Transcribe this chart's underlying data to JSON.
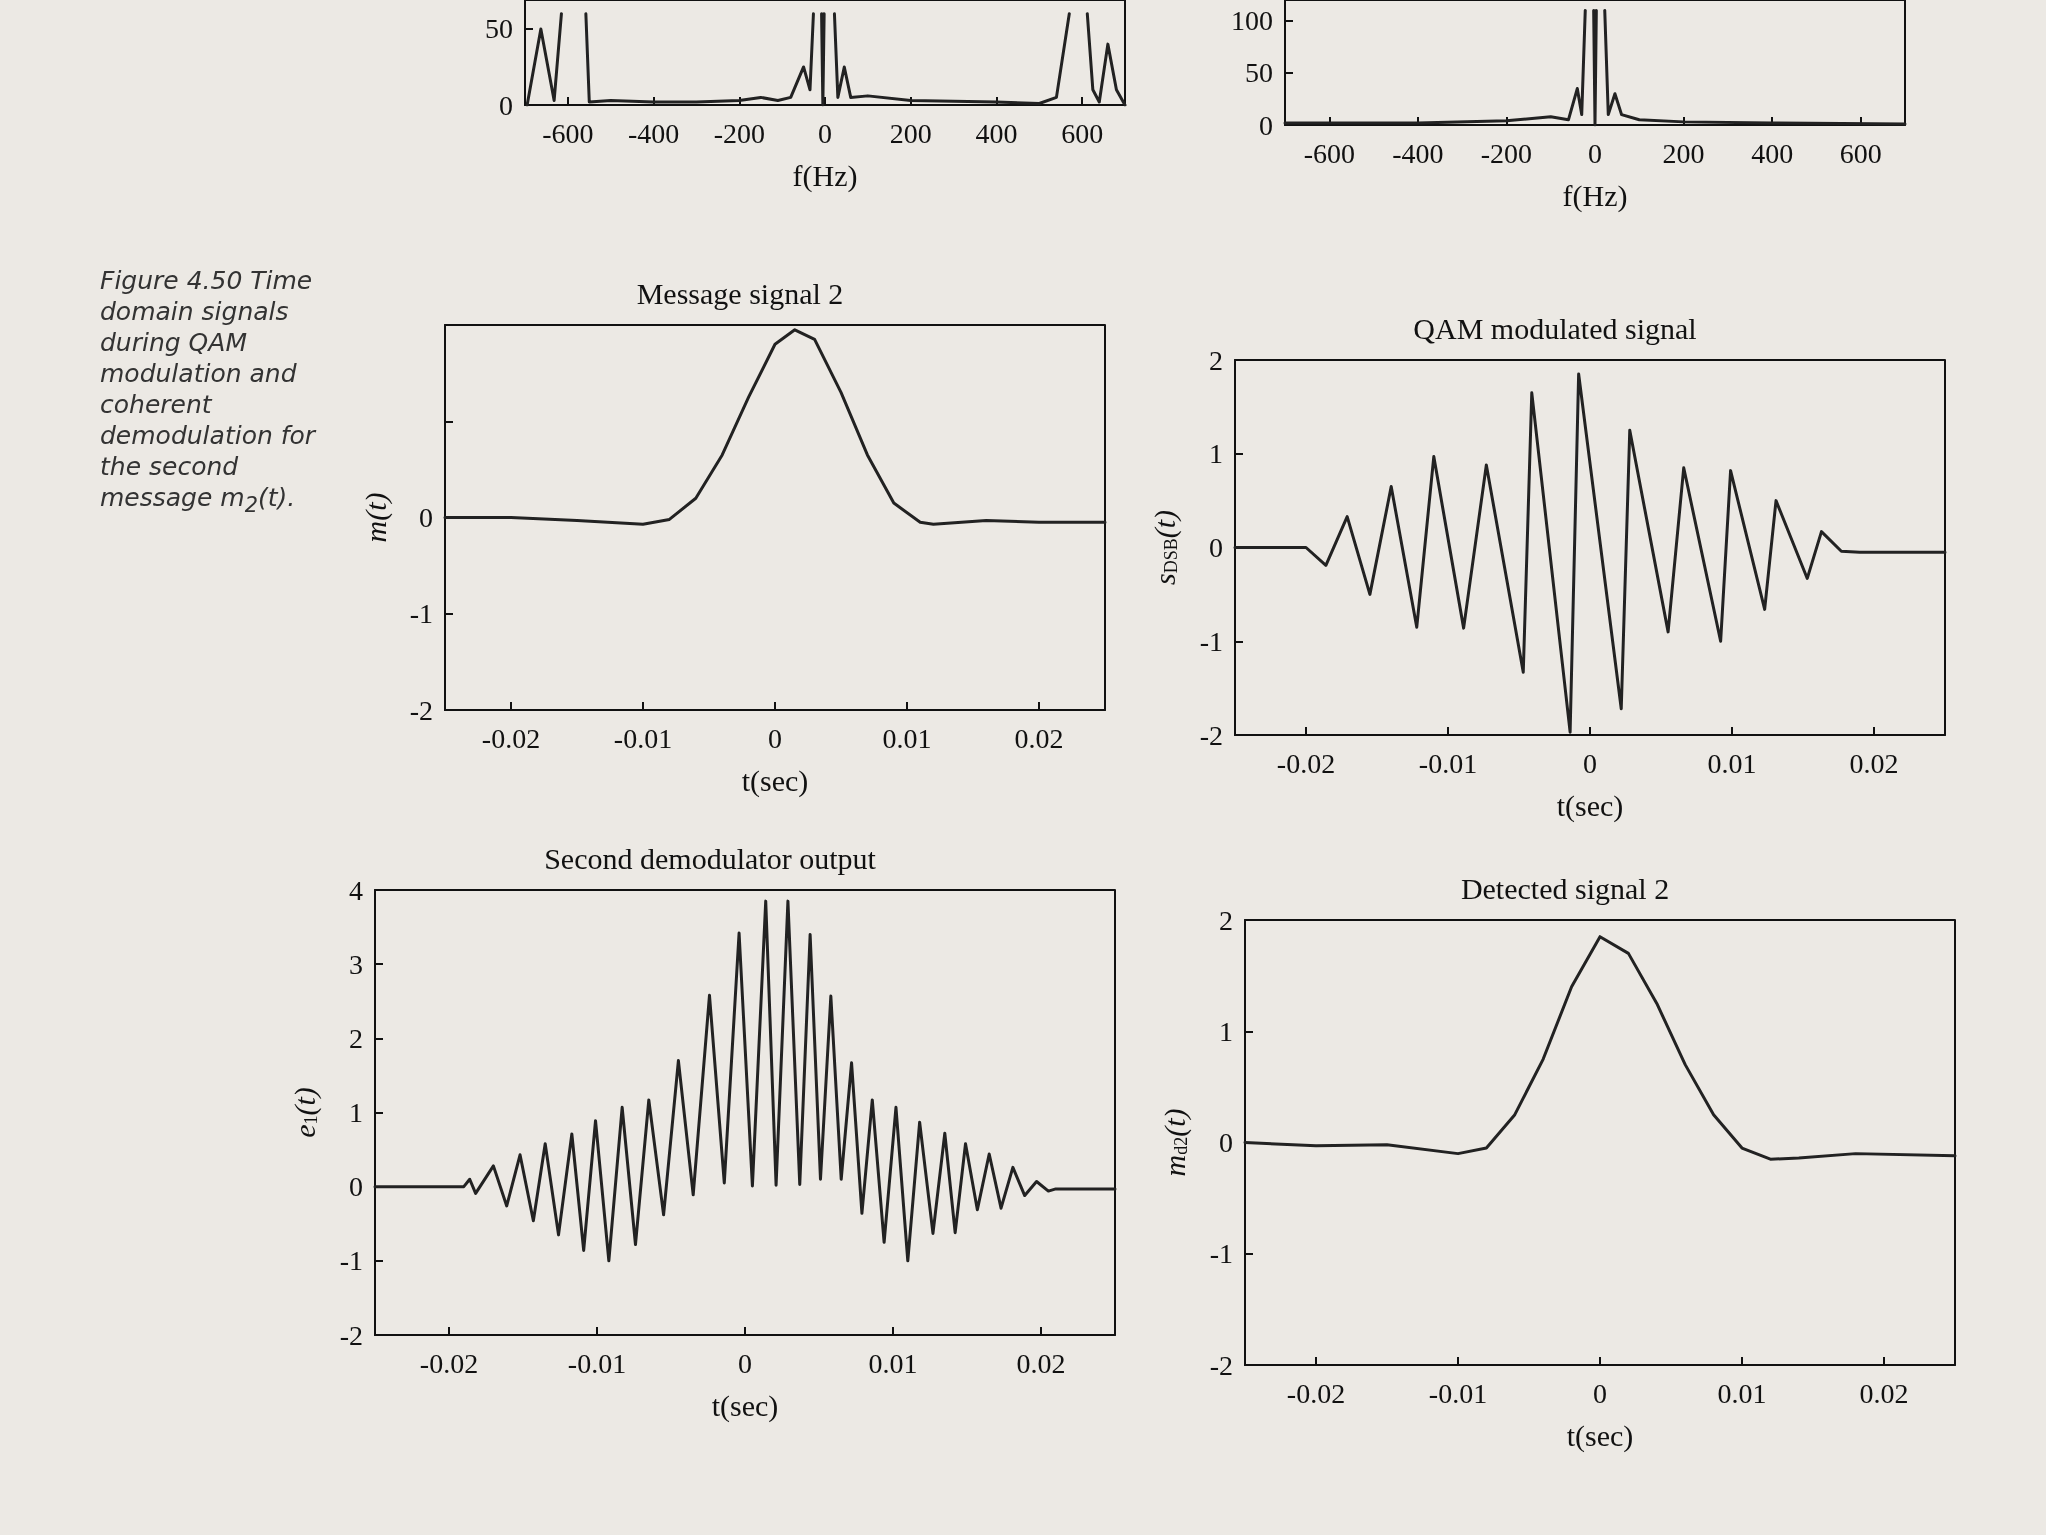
{
  "chart_data": [
    {
      "type": "line",
      "xlabel": "f(Hz)",
      "x": [
        -695,
        -663,
        -632,
        -615,
        -590,
        -558,
        -550,
        -500,
        -400,
        -300,
        -200,
        -150,
        -110,
        -80,
        -50,
        -35,
        -27,
        -15,
        -8,
        -5,
        -2,
        10,
        22,
        30,
        45,
        60,
        100,
        200,
        400,
        500,
        540,
        570,
        590,
        612,
        625,
        640,
        660,
        680,
        700
      ],
      "values": [
        0,
        50,
        3,
        60,
        null,
        60,
        2,
        3,
        2,
        2,
        3,
        5,
        3,
        5,
        25,
        10,
        60,
        null,
        60,
        0,
        60,
        null,
        60,
        5,
        25,
        5,
        6,
        3,
        2,
        1,
        5,
        60,
        null,
        60,
        10,
        2,
        40,
        10,
        0
      ],
      "color": "#222222",
      "xlim": [
        -700,
        700
      ],
      "ylim": [
        0,
        69
      ],
      "xticks": [
        -600,
        -400,
        -200,
        0,
        200,
        400,
        600
      ],
      "yticks": [
        0,
        50
      ],
      "marker": "none",
      "line_style": "solid",
      "grid": false
    },
    {
      "type": "line",
      "xlabel": "f(Hz)",
      "x": [
        -700,
        -400,
        -200,
        -100,
        -60,
        -40,
        -30,
        -22,
        -12,
        -3,
        0,
        3,
        12,
        22,
        30,
        45,
        60,
        100,
        200,
        400,
        700
      ],
      "values": [
        2,
        2,
        4,
        8,
        5,
        35,
        10,
        110,
        null,
        110,
        0,
        110,
        null,
        110,
        10,
        30,
        10,
        5,
        3,
        2,
        1
      ],
      "color": "#222222",
      "xlim": [
        -700,
        700
      ],
      "ylim": [
        0,
        120
      ],
      "xticks": [
        -600,
        -400,
        -200,
        0,
        200,
        400,
        600
      ],
      "yticks": [
        0,
        50,
        100
      ],
      "marker": "none",
      "line_style": "solid",
      "grid": false
    },
    {
      "type": "line",
      "title": "Message signal 2",
      "xlabel": "t(sec)",
      "ylabel": "m(t)",
      "annotations": [
        "Figure 4.50 Time domain signals during QAM modulation and coherent demodulation for the second message m$_{2}$(t)."
      ],
      "x": [
        -0.025,
        -0.02,
        -0.015,
        -0.01,
        -0.008,
        -0.006,
        -0.004,
        -0.002,
        0,
        0.0015,
        0.003,
        0.005,
        0.007,
        0.009,
        0.011,
        0.012,
        0.016,
        0.02,
        0.025
      ],
      "values": [
        0,
        0,
        -0.03,
        -0.07,
        -0.02,
        0.2,
        0.65,
        1.25,
        1.8,
        1.95,
        1.85,
        1.3,
        0.65,
        0.15,
        -0.05,
        -0.07,
        -0.03,
        -0.05,
        -0.05
      ],
      "color": "#222222",
      "xlim": [
        -0.025,
        0.025
      ],
      "ylim": [
        -2,
        2
      ],
      "xticks": [
        -0.02,
        -0.01,
        0,
        0.01,
        0.02
      ],
      "yticks": [
        -2,
        -1,
        0,
        {
          "value": 1,
          "label": null
        },
        {
          "value": 2,
          "label": null
        }
      ],
      "marker": "none",
      "line_style": "solid",
      "grid": false
    },
    {
      "type": "line",
      "title": "QAM modulated signal",
      "xlabel": "t(sec)",
      "ylabel": "s$_{DSB}$(t)",
      "x": [
        -0.025,
        -0.02,
        -0.0186,
        -0.0171,
        -0.0155,
        -0.014,
        -0.0122,
        -0.011,
        -0.0089,
        -0.0073,
        -0.0047,
        -0.0041,
        -0.0014,
        -0.0008,
        0.0022,
        0.0028,
        0.0055,
        0.0066,
        0.0092,
        0.0099,
        0.0123,
        0.0131,
        0.0153,
        0.0163,
        0.0177,
        0.019,
        0.025
      ],
      "values": [
        0,
        0,
        -0.19,
        0.33,
        -0.5,
        0.65,
        -0.85,
        0.97,
        -0.86,
        0.88,
        -1.33,
        1.65,
        -1.97,
        1.85,
        -1.72,
        1.25,
        -0.9,
        0.85,
        -1.0,
        0.82,
        -0.66,
        0.5,
        -0.33,
        0.17,
        -0.04,
        -0.05,
        -0.05
      ],
      "color": "#222222",
      "xlim": [
        -0.025,
        0.025
      ],
      "ylim": [
        -2,
        2
      ],
      "xticks": [
        -0.02,
        -0.01,
        0,
        0.01,
        0.02
      ],
      "yticks": [
        -2,
        -1,
        0,
        1,
        2
      ],
      "marker": "none",
      "line_style": "solid",
      "grid": false
    },
    {
      "type": "line",
      "title": "Second demodulator output",
      "xlabel": "t(sec)",
      "ylabel": "e$_{1}$(t)",
      "x": [
        -0.025,
        -0.019,
        -0.0186,
        -0.0182,
        -0.017,
        -0.0161,
        -0.0152,
        -0.0143,
        -0.0135,
        -0.0126,
        -0.0117,
        -0.0109,
        -0.0101,
        -0.0092,
        -0.0083,
        -0.0074,
        -0.0065,
        -0.0055,
        -0.0045,
        -0.0035,
        -0.0024,
        -0.0014,
        -0.0004,
        0.0005,
        0.0014,
        0.0021,
        0.0029,
        0.0037,
        0.0044,
        0.0051,
        0.0058,
        0.0065,
        0.0072,
        0.0079,
        0.0086,
        0.0094,
        0.0102,
        0.011,
        0.0118,
        0.0127,
        0.0135,
        0.0142,
        0.0149,
        0.0157,
        0.0165,
        0.0173,
        0.0181,
        0.0189,
        0.0197,
        0.0205,
        0.021,
        0.025
      ],
      "values": [
        0,
        0,
        0.1,
        -0.09,
        0.28,
        -0.26,
        0.43,
        -0.46,
        0.58,
        -0.65,
        0.71,
        -0.86,
        0.89,
        -1.0,
        1.07,
        -0.78,
        1.17,
        -0.38,
        1.7,
        -0.11,
        2.58,
        0.05,
        3.42,
        0.01,
        3.85,
        0.02,
        3.85,
        0.03,
        3.4,
        0.1,
        2.57,
        0.1,
        1.67,
        -0.36,
        1.17,
        -0.75,
        1.07,
        -1.0,
        0.87,
        -0.63,
        0.72,
        -0.62,
        0.58,
        -0.31,
        0.44,
        -0.29,
        0.26,
        -0.12,
        0.07,
        -0.06,
        -0.03,
        -0.03
      ],
      "color": "#222222",
      "xlim": [
        -0.025,
        0.025
      ],
      "ylim": [
        -2,
        4
      ],
      "xticks": [
        -0.02,
        -0.01,
        0,
        0.01,
        0.02
      ],
      "yticks": [
        -2,
        -1,
        0,
        1,
        2,
        3,
        4
      ],
      "marker": "none",
      "line_style": "solid",
      "grid": false
    },
    {
      "type": "line",
      "title": "Detected signal 2",
      "xlabel": "t(sec)",
      "ylabel": "m$_{d2}$(t)",
      "x": [
        -0.025,
        -0.02,
        -0.015,
        -0.01,
        -0.008,
        -0.006,
        -0.004,
        -0.002,
        0,
        0.002,
        0.004,
        0.006,
        0.008,
        0.01,
        0.012,
        0.014,
        0.018,
        0.025
      ],
      "values": [
        0,
        -0.03,
        -0.02,
        -0.1,
        -0.05,
        0.25,
        0.75,
        1.4,
        1.85,
        1.7,
        1.25,
        0.7,
        0.25,
        -0.05,
        -0.15,
        -0.14,
        -0.1,
        -0.12
      ],
      "color": "#222222",
      "xlim": [
        -0.025,
        0.025
      ],
      "ylim": [
        -2,
        2
      ],
      "xticks": [
        -0.02,
        -0.01,
        0,
        0.01,
        0.02
      ],
      "yticks": [
        -2,
        -1,
        0,
        1,
        2
      ],
      "marker": "none",
      "line_style": "solid",
      "grid": false
    }
  ]
}
